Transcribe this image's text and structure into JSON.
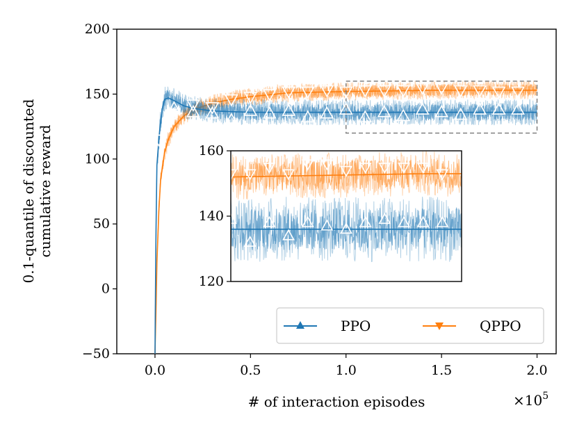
{
  "chart_data": {
    "type": "line",
    "title": "",
    "xlabel": "# of interaction episodes",
    "x_multiplier": "×10",
    "x_multiplier_exp": "5",
    "ylabel_line1": "0.1-quantile of discounted",
    "ylabel_line2": "cumulative reward",
    "xlim": [
      -0.2,
      2.1
    ],
    "ylim": [
      -50,
      200
    ],
    "xticks": [
      0.0,
      0.5,
      1.0,
      1.5,
      2.0
    ],
    "xtick_labels": [
      "0.0",
      "0.5",
      "1.0",
      "1.5",
      "2.0"
    ],
    "yticks": [
      -50,
      0,
      50,
      100,
      150,
      200
    ],
    "ytick_labels": [
      "−50",
      "0",
      "50",
      "100",
      "150",
      "200"
    ],
    "legend_position": "lower-right",
    "series": [
      {
        "name": "PPO",
        "color": "#1f77b4",
        "marker": "triangle-up",
        "trend": {
          "x": [
            0.0,
            0.005,
            0.01,
            0.02,
            0.03,
            0.04,
            0.05,
            0.07,
            0.1,
            0.15,
            0.2,
            0.3,
            0.5,
            1.0,
            1.5,
            2.0
          ],
          "y": [
            -50,
            40,
            95,
            115,
            130,
            140,
            146,
            147,
            145,
            141,
            139,
            137,
            136,
            136,
            136,
            136
          ]
        },
        "noise_band": 10,
        "markers_x": [
          0.1,
          0.2,
          0.3,
          0.4,
          0.5,
          0.6,
          0.7,
          0.8,
          0.9,
          1.0,
          1.1,
          1.2,
          1.3,
          1.4,
          1.5,
          1.6,
          1.7,
          1.8,
          1.9
        ],
        "markers_y": [
          139,
          136,
          135,
          130,
          137,
          135,
          137,
          132,
          135,
          138,
          132,
          136,
          133,
          138,
          136,
          134,
          138,
          138,
          138
        ]
      },
      {
        "name": "QPPO",
        "color": "#ff7f0e",
        "marker": "triangle-down",
        "trend": {
          "x": [
            0.0,
            0.005,
            0.01,
            0.02,
            0.03,
            0.05,
            0.07,
            0.1,
            0.15,
            0.2,
            0.3,
            0.4,
            0.5,
            0.7,
            1.0,
            1.5,
            2.0
          ],
          "y": [
            -50,
            -20,
            20,
            60,
            85,
            105,
            115,
            125,
            133,
            138,
            143,
            146,
            148,
            151,
            152,
            153,
            153
          ]
        },
        "noise_band": 7,
        "markers_x": [
          0.02,
          0.1,
          0.2,
          0.3,
          0.4,
          0.5,
          0.6,
          0.7,
          0.8,
          0.9,
          1.0,
          1.1,
          1.2,
          1.3,
          1.4,
          1.5,
          1.6,
          1.7,
          1.8,
          1.9
        ],
        "markers_y": [
          115,
          135,
          142,
          140,
          146,
          148,
          150,
          152,
          152,
          153,
          152,
          153,
          153,
          153,
          155,
          155,
          153,
          153,
          152,
          152
        ]
      }
    ],
    "zoom_box": {
      "xlim": [
        1.0,
        2.0
      ],
      "ylim": [
        120,
        160
      ]
    },
    "inset": {
      "xlim": [
        1.0,
        1.6
      ],
      "ylim": [
        120,
        160
      ],
      "yticks": [
        120,
        140,
        160
      ],
      "ytick_labels": [
        "120",
        "140",
        "160"
      ],
      "ppo_markers_x": [
        1.0,
        1.05,
        1.1,
        1.15,
        1.2,
        1.25,
        1.3,
        1.35,
        1.4,
        1.45,
        1.5,
        1.55
      ],
      "ppo_markers_y": [
        139,
        132,
        138,
        134,
        138,
        137,
        136,
        138,
        139,
        138,
        138,
        138
      ],
      "qppo_markers_x": [
        1.0,
        1.05,
        1.1,
        1.15,
        1.2,
        1.25,
        1.3,
        1.35,
        1.4,
        1.45,
        1.5,
        1.55
      ],
      "qppo_markers_y": [
        153,
        153,
        155,
        153,
        156,
        156,
        154,
        155,
        155,
        155,
        155,
        153
      ]
    }
  }
}
